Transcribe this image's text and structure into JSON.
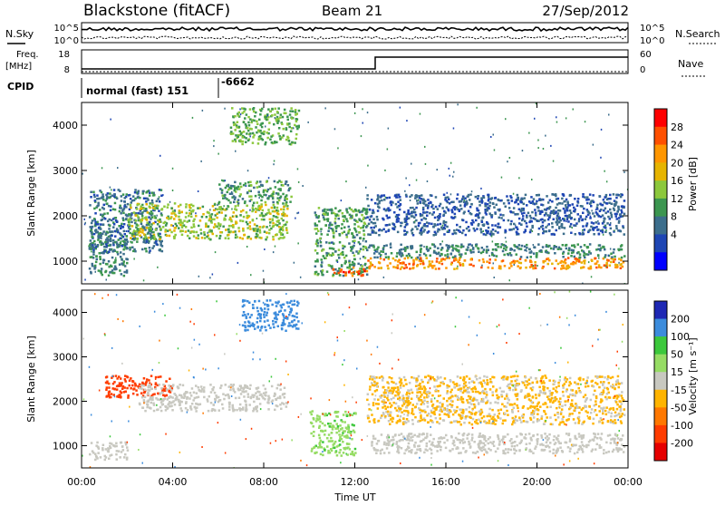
{
  "header": {
    "station": "Blackstone (fitACF)",
    "beam": "Beam 21",
    "date": "27/Sep/2012"
  },
  "top_panels": {
    "nsky_label": "N.Sky",
    "nsearch_label": "N.Search",
    "nsky_ticks": [
      "10^5",
      "10^0"
    ],
    "nsearch_ticks": [
      "10^5",
      "10^0"
    ],
    "freq_label_1": "Freq.",
    "freq_label_2": "[MHz]",
    "freq_ticks": [
      "18",
      "8"
    ],
    "nave_label": "Nave",
    "nave_ticks": [
      "60",
      "0"
    ],
    "cpid_label": "CPID",
    "cpid_text": "normal (fast) 151",
    "cpid_code": "-6662"
  },
  "time_axis": {
    "label": "Time UT",
    "ticks": [
      "00:00",
      "04:00",
      "08:00",
      "12:00",
      "16:00",
      "20:00",
      "00:00"
    ]
  },
  "chart_data": [
    {
      "type": "heatmap",
      "panel": "power",
      "ylabel": "Slant Range [km]",
      "yticks": [
        1000,
        2000,
        3000,
        4000
      ],
      "ylim": [
        500,
        4500
      ],
      "xlim_hours": [
        0,
        24
      ],
      "colorbar_label": "Power [dB]",
      "colorbar_ticks": [
        "28",
        "24",
        "20",
        "16",
        "12",
        "8",
        "4"
      ],
      "colorbar_colors": [
        "#ff0000",
        "#ff5000",
        "#ff9600",
        "#e6b400",
        "#8cc83c",
        "#3c9650",
        "#3c6e8c",
        "#1e46b4",
        "#0000ff"
      ],
      "bands": [
        {
          "t": [
            0.3,
            2.0
          ],
          "r": [
            700,
            1700
          ],
          "value": 10
        },
        {
          "t": [
            0.3,
            3.5
          ],
          "r": [
            1200,
            2600
          ],
          "value": 8
        },
        {
          "t": [
            2.0,
            9.0
          ],
          "r": [
            1500,
            2300
          ],
          "value": 16
        },
        {
          "t": [
            6.0,
            9.2
          ],
          "r": [
            2300,
            2800
          ],
          "value": 12
        },
        {
          "t": [
            6.5,
            9.5
          ],
          "r": [
            3600,
            4400
          ],
          "value": 14
        },
        {
          "t": [
            10.2,
            12.5
          ],
          "r": [
            700,
            2200
          ],
          "value": 12
        },
        {
          "t": [
            11.0,
            12.5
          ],
          "r": [
            700,
            900
          ],
          "value": 28
        },
        {
          "t": [
            12.5,
            23.8
          ],
          "r": [
            850,
            1100
          ],
          "value": 24
        },
        {
          "t": [
            12.5,
            23.8
          ],
          "r": [
            1100,
            1400
          ],
          "value": 10
        },
        {
          "t": [
            12.5,
            23.8
          ],
          "r": [
            1600,
            2500
          ],
          "value": 6
        }
      ]
    },
    {
      "type": "heatmap",
      "panel": "velocity",
      "ylabel": "Slant Range [km]",
      "yticks": [
        1000,
        2000,
        3000,
        4000
      ],
      "ylim": [
        500,
        4500
      ],
      "xlim_hours": [
        0,
        24
      ],
      "colorbar_label": "Velocity [m s⁻¹]",
      "colorbar_ticks": [
        "200",
        "100",
        "50",
        "15",
        "-15",
        "-50",
        "-100",
        "-200"
      ],
      "colorbar_colors": [
        "#1e28b4",
        "#3c8cdc",
        "#3cc83c",
        "#96dc64",
        "#c8c8c0",
        "#ffb400",
        "#ff7800",
        "#ff3c00",
        "#e60000"
      ],
      "bands": [
        {
          "t": [
            0.3,
            2.0
          ],
          "r": [
            700,
            1100
          ],
          "value": 0
        },
        {
          "t": [
            1.0,
            4.0
          ],
          "r": [
            2100,
            2600
          ],
          "value": -150
        },
        {
          "t": [
            2.5,
            9.0
          ],
          "r": [
            1800,
            2400
          ],
          "value": 0
        },
        {
          "t": [
            7.0,
            9.5
          ],
          "r": [
            3600,
            4300
          ],
          "value": 150
        },
        {
          "t": [
            10.0,
            12.0
          ],
          "r": [
            800,
            1800
          ],
          "value": 40
        },
        {
          "t": [
            12.5,
            23.8
          ],
          "r": [
            850,
            1300
          ],
          "value": 0
        },
        {
          "t": [
            12.5,
            23.8
          ],
          "r": [
            1500,
            2600
          ],
          "value": -20
        }
      ]
    }
  ]
}
